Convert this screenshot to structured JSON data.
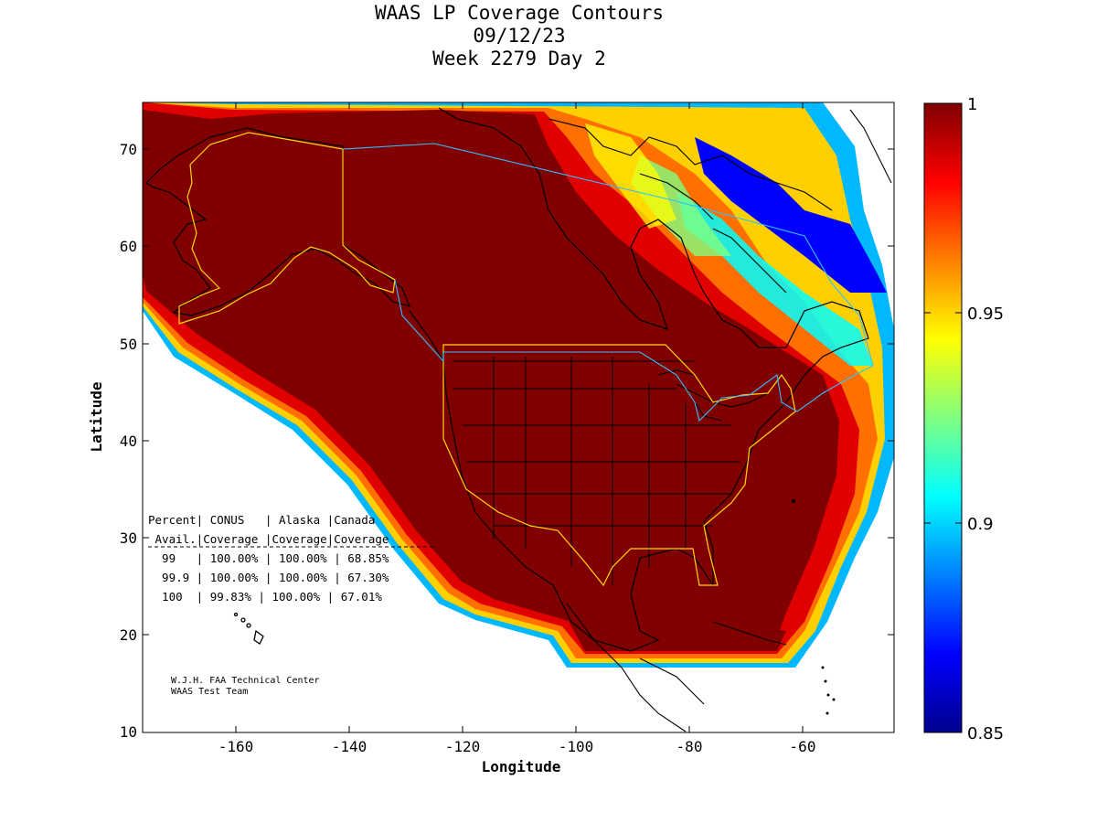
{
  "title": {
    "line1": "WAAS LP Coverage Contours",
    "line2": "09/12/23",
    "line3": "Week 2279 Day 2"
  },
  "axes": {
    "xlabel": "Longitude",
    "ylabel": "Latitude",
    "xlim": [
      -174,
      -50
    ],
    "ylim": [
      10,
      75
    ],
    "xticks": [
      -160,
      -140,
      -120,
      -100,
      -80,
      -60
    ],
    "yticks": [
      10,
      20,
      30,
      40,
      50,
      60,
      70
    ]
  },
  "colorbar": {
    "range": [
      0.85,
      1
    ],
    "ticks": [
      "1",
      "0.95",
      "0.9",
      "0.85"
    ],
    "colormap": "jet",
    "colors": [
      "#00008f",
      "#0000ff",
      "#0080ff",
      "#00ffff",
      "#80ff80",
      "#ffff00",
      "#ff8000",
      "#ff0000",
      "#800000"
    ]
  },
  "coverage_table": {
    "header1": "Percent| CONUS   | Alaska |Canada",
    "header2": " Avail.|Coverage |Coverage|Coverage",
    "rows": [
      "  99   | 100.00% | 100.00% | 68.85%",
      "  99.9 | 100.00% | 100.00% | 67.30%",
      "  100  | 99.83% | 100.00% | 67.01%"
    ]
  },
  "credit": {
    "line1": "W.J.H. FAA Technical Center",
    "line2": "WAAS Test Team"
  },
  "chart_data": {
    "type": "heatmap",
    "title": "WAAS LP Coverage Contours",
    "xlabel": "Longitude",
    "ylabel": "Latitude",
    "xlim": [
      -174,
      -50
    ],
    "ylim": [
      10,
      75
    ],
    "value_range": [
      0.85,
      1
    ],
    "table": {
      "columns": [
        "Percent Avail.",
        "CONUS Coverage",
        "Alaska Coverage",
        "Canada Coverage"
      ],
      "rows": [
        [
          "99",
          "100.00%",
          "100.00%",
          "68.85%"
        ],
        [
          "99.9",
          "100.00%",
          "100.00%",
          "67.30%"
        ],
        [
          "100",
          "99.83%",
          "100.00%",
          "67.01%"
        ]
      ]
    }
  }
}
